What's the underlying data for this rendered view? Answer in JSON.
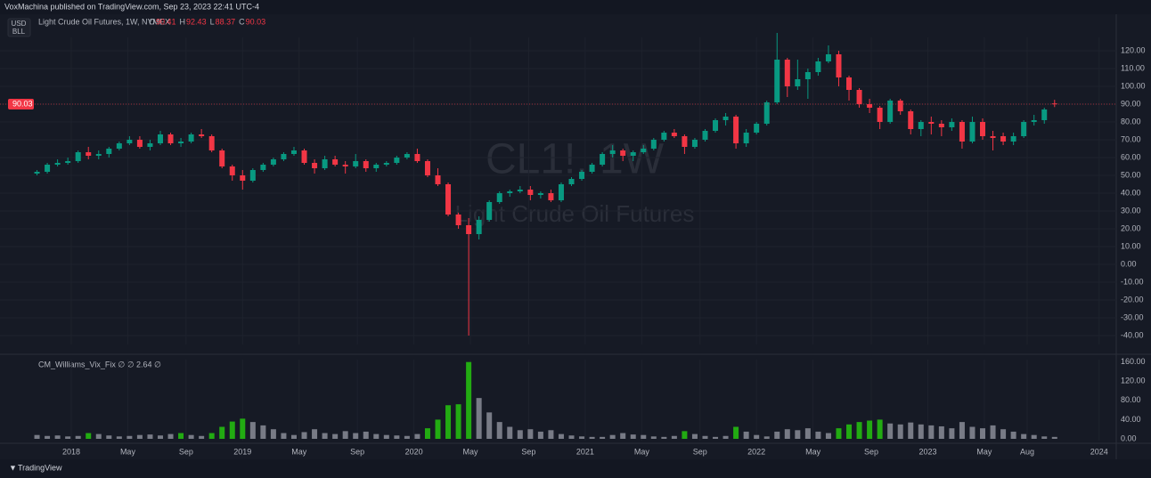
{
  "header": {
    "publisher": "VoxMachina published on TradingView.com, Sep 23, 2023 22:41 UTC-4",
    "symbol_line": "Light Crude Oil Futures, 1W, NYMEX",
    "currency": "USD",
    "unit": "BLL"
  },
  "watermark": {
    "symbol": "CL1!, 1W",
    "name": "Light Crude Oil Futures"
  },
  "footer": {
    "brand": "TradingView"
  },
  "chart_data": [
    {
      "type": "candlestick",
      "up_color": "#089981",
      "down_color": "#f23645",
      "ohlc_labels": [
        "O",
        "H",
        "L",
        "C"
      ],
      "last": [
        90.41,
        92.43,
        88.37,
        90.03
      ],
      "xlim": [
        2017.584,
        2024.1
      ],
      "ylim": [
        -45,
        132
      ],
      "yticks": [
        {
          "value": 120,
          "label": "120.00"
        },
        {
          "value": 110,
          "label": "110.00"
        },
        {
          "value": 100,
          "label": "100.00"
        },
        {
          "value": 90,
          "label": "90.00"
        },
        {
          "value": 80,
          "label": "80.00"
        },
        {
          "value": 70,
          "label": "70.00"
        },
        {
          "value": 60,
          "label": "60.00"
        },
        {
          "value": 50,
          "label": "50.00"
        },
        {
          "value": 40,
          "label": "40.00"
        },
        {
          "value": 30,
          "label": "30.00"
        },
        {
          "value": 20,
          "label": "20.00"
        },
        {
          "value": 10,
          "label": "10.00"
        },
        {
          "value": 0,
          "label": "0.00"
        },
        {
          "value": -10,
          "label": "-10.00"
        },
        {
          "value": -20,
          "label": "-20.00"
        },
        {
          "value": -30,
          "label": "-30.00"
        },
        {
          "value": -40,
          "label": "-40.00"
        }
      ],
      "grid": true,
      "x": [
        2017.8,
        2017.86,
        2017.92,
        2017.98,
        2018.04,
        2018.1,
        2018.16,
        2018.22,
        2018.28,
        2018.34,
        2018.4,
        2018.46,
        2018.52,
        2018.58,
        2018.64,
        2018.7,
        2018.76,
        2018.82,
        2018.88,
        2018.94,
        2019.0,
        2019.06,
        2019.12,
        2019.18,
        2019.24,
        2019.3,
        2019.36,
        2019.42,
        2019.48,
        2019.54,
        2019.6,
        2019.66,
        2019.72,
        2019.78,
        2019.84,
        2019.9,
        2019.96,
        2020.02,
        2020.08,
        2020.14,
        2020.2,
        2020.26,
        2020.32,
        2020.38,
        2020.44,
        2020.5,
        2020.56,
        2020.62,
        2020.68,
        2020.74,
        2020.8,
        2020.86,
        2020.92,
        2020.98,
        2021.04,
        2021.1,
        2021.16,
        2021.22,
        2021.28,
        2021.34,
        2021.4,
        2021.46,
        2021.52,
        2021.58,
        2021.64,
        2021.7,
        2021.76,
        2021.82,
        2021.88,
        2021.94,
        2022.0,
        2022.06,
        2022.12,
        2022.18,
        2022.24,
        2022.3,
        2022.36,
        2022.42,
        2022.48,
        2022.54,
        2022.6,
        2022.66,
        2022.72,
        2022.78,
        2022.84,
        2022.9,
        2022.96,
        2023.02,
        2023.08,
        2023.14,
        2023.2,
        2023.26,
        2023.32,
        2023.38,
        2023.44,
        2023.5,
        2023.56,
        2023.62,
        2023.68,
        2023.74
      ],
      "open": [
        51,
        52,
        56,
        57,
        58,
        63,
        61,
        62,
        65,
        68,
        70,
        66,
        68,
        73,
        68,
        69,
        73,
        72,
        64,
        55,
        50,
        47,
        53,
        56,
        59,
        62,
        64,
        57,
        54,
        59,
        56,
        55,
        58,
        54,
        56,
        57,
        60,
        62,
        58,
        50,
        45,
        28,
        22,
        17,
        25,
        35,
        40,
        41,
        42,
        39,
        40,
        36,
        45,
        48,
        52,
        56,
        62,
        64,
        61,
        63,
        65,
        70,
        74,
        72,
        66,
        70,
        75,
        81,
        83,
        68,
        74,
        79,
        91,
        115,
        100,
        104,
        108,
        114,
        118,
        105,
        98,
        90,
        88,
        80,
        92,
        86,
        76,
        80,
        79,
        77,
        80,
        69,
        80,
        72,
        72,
        69,
        72,
        80,
        81,
        90.41
      ],
      "high": [
        53,
        57,
        59,
        60,
        64,
        66,
        64,
        66,
        69,
        72,
        72,
        70,
        75,
        74,
        71,
        74,
        76,
        73,
        65,
        56,
        53,
        54,
        57,
        60,
        63,
        66,
        65,
        59,
        61,
        61,
        58,
        62,
        59,
        57,
        58,
        61,
        63,
        65,
        59,
        54,
        46,
        29,
        26,
        27,
        36,
        41,
        42,
        44,
        44,
        41,
        42,
        46,
        49,
        53,
        57,
        63,
        67,
        65,
        64,
        67,
        71,
        75,
        76,
        73,
        71,
        76,
        82,
        85,
        84,
        76,
        80,
        92,
        130,
        116,
        115,
        110,
        116,
        123,
        120,
        106,
        99,
        93,
        89,
        93,
        93,
        87,
        81,
        83,
        81,
        82,
        81,
        83,
        82,
        75,
        74,
        74,
        81,
        84,
        88,
        92.43
      ],
      "low": [
        50,
        51,
        55,
        56,
        57,
        59,
        59,
        60,
        64,
        67,
        65,
        64,
        67,
        67,
        66,
        68,
        71,
        63,
        54,
        47,
        42,
        46,
        52,
        55,
        58,
        61,
        56,
        51,
        53,
        55,
        51,
        54,
        52,
        52,
        55,
        56,
        59,
        57,
        49,
        44,
        27,
        20,
        -40,
        14,
        24,
        34,
        38,
        40,
        36,
        37,
        35,
        35,
        44,
        47,
        51,
        55,
        60,
        58,
        58,
        62,
        64,
        69,
        71,
        62,
        65,
        69,
        74,
        78,
        65,
        66,
        73,
        78,
        90,
        94,
        98,
        93,
        106,
        113,
        100,
        92,
        88,
        85,
        76,
        79,
        84,
        73,
        72,
        73,
        72,
        75,
        65,
        68,
        70,
        64,
        67,
        67,
        71,
        78,
        79,
        88.37
      ],
      "close": [
        52,
        56,
        57,
        58,
        63,
        61,
        62,
        65,
        68,
        70,
        66,
        68,
        73,
        68,
        69,
        73,
        72,
        64,
        55,
        50,
        47,
        53,
        56,
        59,
        62,
        64,
        57,
        54,
        59,
        56,
        55,
        58,
        54,
        56,
        57,
        60,
        62,
        58,
        50,
        45,
        28,
        22,
        17,
        25,
        35,
        40,
        41,
        42,
        39,
        40,
        36,
        45,
        48,
        52,
        56,
        62,
        64,
        61,
        63,
        65,
        70,
        74,
        72,
        66,
        70,
        75,
        81,
        83,
        68,
        74,
        79,
        91,
        115,
        100,
        104,
        108,
        114,
        118,
        105,
        98,
        90,
        88,
        80,
        92,
        86,
        76,
        80,
        79,
        77,
        80,
        69,
        80,
        72,
        71,
        69,
        72,
        80,
        81,
        87,
        90.03
      ]
    },
    {
      "type": "bar",
      "title": "CM_Williams_Vix_Fix ∅ ∅ 2.64 ∅",
      "xlim": [
        2017.584,
        2024.1
      ],
      "ylim": [
        0,
        165
      ],
      "yticks": [
        {
          "value": 160,
          "label": "160.00"
        },
        {
          "value": 120,
          "label": "120.00"
        },
        {
          "value": 80,
          "label": "80.00"
        },
        {
          "value": 40,
          "label": "40.00"
        },
        {
          "value": 0,
          "label": "0.00"
        }
      ],
      "xticks": [
        2018,
        {
          "value": 2018.33,
          "label": "May"
        },
        {
          "value": 2018.67,
          "label": "Sep"
        },
        2019,
        {
          "value": 2019.33,
          "label": "May"
        },
        {
          "value": 2019.67,
          "label": "Sep"
        },
        2020,
        {
          "value": 2020.33,
          "label": "May"
        },
        {
          "value": 2020.67,
          "label": "Sep"
        },
        2021,
        {
          "value": 2021.33,
          "label": "May"
        },
        {
          "value": 2021.67,
          "label": "Sep"
        },
        2022,
        {
          "value": 2022.33,
          "label": "May"
        },
        {
          "value": 2022.67,
          "label": "Sep"
        },
        2023,
        {
          "value": 2023.33,
          "label": "May"
        },
        {
          "value": 2023.58,
          "label": "Aug"
        },
        2024
      ],
      "series": [
        {
          "color": "#787b86",
          "values": [
            8,
            6,
            7,
            5,
            6,
            null,
            10,
            7,
            5,
            6,
            8,
            9,
            7,
            10,
            null,
            8,
            6,
            null,
            null,
            null,
            null,
            35,
            28,
            20,
            12,
            8,
            14,
            20,
            12,
            10,
            16,
            12,
            15,
            10,
            8,
            7,
            6,
            10,
            null,
            null,
            null,
            null,
            null,
            85,
            55,
            35,
            25,
            18,
            20,
            15,
            18,
            10,
            7,
            5,
            4,
            4,
            8,
            12,
            9,
            8,
            5,
            4,
            6,
            null,
            10,
            6,
            4,
            6,
            null,
            15,
            8,
            5,
            15,
            20,
            18,
            22,
            15,
            12,
            null,
            null,
            null,
            null,
            null,
            32,
            30,
            34,
            30,
            28,
            26,
            22,
            35,
            25,
            22,
            28,
            20,
            15,
            10,
            8,
            5,
            4
          ]
        },
        {
          "color": "#22ab12",
          "values": [
            null,
            null,
            null,
            null,
            null,
            12,
            null,
            null,
            null,
            null,
            null,
            null,
            null,
            null,
            12,
            null,
            null,
            12,
            25,
            36,
            42,
            null,
            null,
            null,
            null,
            null,
            null,
            null,
            null,
            null,
            null,
            null,
            null,
            null,
            null,
            null,
            null,
            null,
            22,
            40,
            70,
            72,
            160,
            null,
            null,
            null,
            null,
            null,
            null,
            null,
            null,
            null,
            null,
            null,
            null,
            null,
            null,
            null,
            null,
            null,
            null,
            null,
            null,
            16,
            null,
            null,
            null,
            null,
            25,
            null,
            null,
            null,
            null,
            null,
            null,
            null,
            null,
            null,
            22,
            30,
            35,
            38,
            40,
            null,
            null,
            null,
            null,
            null,
            null,
            null,
            null,
            null,
            null,
            null,
            null,
            null,
            null,
            null,
            null,
            null
          ]
        }
      ]
    }
  ]
}
